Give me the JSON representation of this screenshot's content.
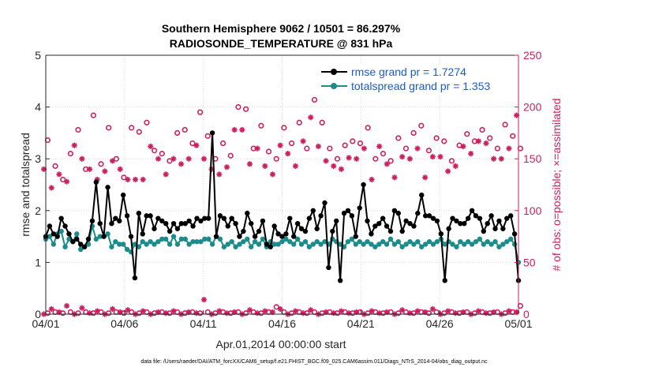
{
  "chart_data": {
    "type": "line",
    "title": "Southern Hemisphere 9062 / 10501 = 86.297%",
    "subtitle": "RADIOSONDE_TEMPERATURE @ 831 hPa",
    "xlabel": "Apr.01,2014 00:00:00 start",
    "ylabel": "rmse and totalspread",
    "ylabel_right": "# of obs: o=possible; ×=assimilated",
    "footnote": "data file: /Users/raeder/DAI/ATM_forcXX/CAM6_setup/f.e21.FHIST_BGC.f09_025.CAM6assim.011/Diags_NTrS_2014-04/obs_diag_output.nc",
    "x_range": [
      0,
      30
    ],
    "ylim": [
      0,
      5
    ],
    "ylim_right": [
      0,
      250
    ],
    "x_ticks": [
      0,
      5,
      10,
      15,
      20,
      25,
      30
    ],
    "x_tick_labels": [
      "04/01",
      "04/06",
      "04/11",
      "04/16",
      "04/21",
      "04/26",
      "05/01"
    ],
    "y_ticks": [
      0,
      1,
      2,
      3,
      4,
      5
    ],
    "y_tick_labels": [
      "0",
      "1",
      "2",
      "3",
      "4",
      "5"
    ],
    "y_ticks_right": [
      0,
      50,
      100,
      150,
      200,
      250
    ],
    "y_tick_labels_right": [
      "0",
      "50",
      "100",
      "150",
      "200",
      "250"
    ],
    "grid": true,
    "legend_position": "top-right",
    "x_step": 0.25,
    "series": [
      {
        "name": "rmse grand pr = 1.7274",
        "color": "#000000",
        "marker": "hexagon",
        "axis": "left",
        "values": [
          1.5,
          1.7,
          1.55,
          1.5,
          1.85,
          1.7,
          1.55,
          1.4,
          1.45,
          1.35,
          1.3,
          1.45,
          1.8,
          2.55,
          1.75,
          1.5,
          2.45,
          1.75,
          1.85,
          1.8,
          2.3,
          1.9,
          1.5,
          0.7,
          1.95,
          1.55,
          1.9,
          1.9,
          1.65,
          1.85,
          1.8,
          1.75,
          1.6,
          1.75,
          1.65,
          1.75,
          1.75,
          1.8,
          1.7,
          1.85,
          1.8,
          1.85,
          1.85,
          3.5,
          1.5,
          1.9,
          1.85,
          1.7,
          1.85,
          1.75,
          1.5,
          1.6,
          1.95,
          1.75,
          1.5,
          1.6,
          1.8,
          1.35,
          1.3,
          1.7,
          1.55,
          1.5,
          1.55,
          1.85,
          1.5,
          1.75,
          1.65,
          1.6,
          1.85,
          2.0,
          1.65,
          1.9,
          2.15,
          0.9,
          1.6,
          1.8,
          0.65,
          1.95,
          2.0,
          1.9,
          1.5,
          2.05,
          2.5,
          1.8,
          1.55,
          1.7,
          1.75,
          1.85,
          1.7,
          1.6,
          2.0,
          1.95,
          1.6,
          1.8,
          1.75,
          1.7,
          1.95,
          2.3,
          1.9,
          1.9,
          1.85,
          1.8,
          1.55,
          0.65,
          1.65,
          1.85,
          1.8,
          1.75,
          1.75,
          1.85,
          2.0,
          1.9,
          1.85,
          1.6,
          1.75,
          1.9,
          1.65,
          1.8,
          1.65,
          1.85,
          1.9,
          1.55,
          0.65
        ]
      },
      {
        "name": "totalspread grand pr = 1.353",
        "color": "#1a8c8c",
        "marker": "hexagon",
        "axis": "left",
        "values": [
          1.45,
          1.5,
          1.35,
          1.55,
          1.6,
          1.3,
          1.45,
          1.4,
          1.55,
          1.25,
          1.3,
          1.35,
          1.7,
          1.45,
          1.5,
          1.5,
          1.55,
          1.3,
          1.4,
          1.35,
          1.35,
          1.25,
          1.2,
          1.35,
          1.3,
          1.4,
          1.35,
          1.4,
          1.35,
          1.4,
          1.45,
          1.45,
          1.35,
          1.5,
          1.35,
          1.45,
          1.45,
          1.35,
          1.4,
          1.4,
          1.4,
          1.45,
          1.45,
          1.35,
          1.5,
          1.45,
          1.3,
          1.35,
          1.4,
          1.3,
          1.35,
          1.4,
          1.45,
          1.3,
          1.4,
          1.35,
          1.45,
          1.3,
          1.4,
          1.35,
          1.35,
          1.4,
          1.45,
          1.4,
          1.35,
          1.45,
          1.35,
          1.4,
          1.3,
          1.35,
          1.4,
          1.35,
          1.4,
          1.35,
          1.45,
          1.4,
          1.35,
          1.3,
          1.4,
          1.45,
          1.35,
          1.4,
          1.35,
          1.4,
          1.35,
          1.3,
          1.35,
          1.4,
          1.35,
          1.45,
          1.35,
          1.4,
          1.3,
          1.35,
          1.4,
          1.35,
          1.4,
          1.3,
          1.35,
          1.4,
          1.35,
          1.4,
          1.45,
          1.35,
          1.4,
          1.35,
          1.3,
          1.4,
          1.35,
          1.4,
          1.35,
          1.4,
          1.45,
          1.35,
          1.4,
          1.35,
          1.4,
          1.3,
          1.35,
          1.4,
          1.45,
          1.35,
          1.0
        ]
      }
    ],
    "obs_series": [
      {
        "name": "possible",
        "marker": "o",
        "color": "#cc1f5e",
        "axis": "right",
        "regular_values": [
          168,
          143,
          130,
          155,
          178,
          140,
          192,
          145,
          180,
          150,
          132,
          180,
          176,
          185,
          158,
          155,
          148,
          175,
          178,
          165,
          195,
          172,
          150,
          165,
          153,
          200,
          198,
          160,
          182,
          157,
          150,
          180,
          165,
          185,
          160,
          207,
          185,
          160,
          150,
          163,
          167,
          165,
          180,
          150,
          155,
          148,
          170,
          160,
          175,
          182,
          158,
          170,
          167,
          148,
          163,
          174,
          167,
          178,
          170,
          160,
          183,
          172,
          160
        ],
        "low_values": [
          1,
          2,
          1,
          2,
          1,
          2,
          1,
          2,
          1,
          2,
          1,
          2,
          1,
          2,
          1,
          2,
          1,
          2,
          1,
          2,
          1,
          2,
          1,
          2,
          1,
          2,
          1,
          2,
          1,
          2,
          7,
          2,
          1,
          2,
          1,
          2,
          1,
          2,
          1,
          2,
          1,
          2,
          1,
          2,
          1,
          2,
          1,
          2,
          1,
          2,
          1,
          2,
          1,
          2,
          1,
          2,
          1,
          2,
          1,
          2,
          1,
          2,
          8
        ]
      },
      {
        "name": "assimilated",
        "marker": "*",
        "color": "#cc1f5e",
        "axis": "right",
        "regular_values": [
          140,
          122,
          135,
          128,
          163,
          150,
          140,
          130,
          138,
          148,
          140,
          130,
          130,
          130,
          162,
          150,
          135,
          150,
          145,
          150,
          163,
          150,
          140,
          135,
          142,
          178,
          178,
          145,
          160,
          143,
          135,
          163,
          155,
          143,
          167,
          190,
          162,
          148,
          143,
          140,
          151,
          150,
          160,
          130,
          162,
          145,
          132,
          152,
          150,
          160,
          132,
          152,
          152,
          138,
          143,
          162,
          155,
          167,
          165,
          150,
          150,
          160,
          192
        ],
        "low_values": [
          0,
          5,
          2,
          8,
          0,
          6,
          1,
          3,
          0,
          5,
          2,
          4,
          0,
          3,
          0,
          2,
          1,
          3,
          0,
          2,
          1,
          14,
          0,
          3,
          1,
          2,
          0,
          4,
          1,
          3,
          2,
          5,
          0,
          3,
          1,
          4,
          0,
          2,
          1,
          3,
          1,
          2,
          0,
          3,
          1,
          2,
          0,
          4,
          1,
          3,
          2,
          5,
          0,
          3,
          1,
          2,
          0,
          3,
          1,
          2,
          0,
          3,
          2
        ]
      }
    ]
  }
}
